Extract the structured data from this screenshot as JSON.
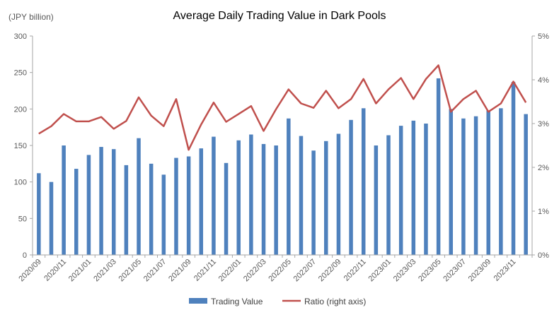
{
  "chart_data": {
    "type": "bar",
    "title": "Average Daily Trading Value in Dark Pools",
    "ylabel_left": "(JPY billion)",
    "ylim_left": [
      0,
      300
    ],
    "yticks_left": [
      "0",
      "50",
      "100",
      "150",
      "200",
      "250",
      "300"
    ],
    "ylim_right": [
      0,
      5
    ],
    "yticks_right": [
      "0%",
      "1%",
      "2%",
      "3%",
      "4%",
      "5%"
    ],
    "categories": [
      "2020/09",
      "2020/10",
      "2020/11",
      "2020/12",
      "2021/01",
      "2021/02",
      "2021/03",
      "2021/04",
      "2021/05",
      "2021/06",
      "2021/07",
      "2021/08",
      "2021/09",
      "2021/10",
      "2021/11",
      "2021/12",
      "2022/01",
      "2022/02",
      "2022/03",
      "2022/04",
      "2022/05",
      "2022/06",
      "2022/07",
      "2022/08",
      "2022/09",
      "2022/10",
      "2022/11",
      "2022/12",
      "2023/01",
      "2023/02",
      "2023/03",
      "2023/04",
      "2023/05",
      "2023/06",
      "2023/07",
      "2023/08",
      "2023/09",
      "2023/10",
      "2023/11",
      "2023/12"
    ],
    "xtick_labels": [
      "2020/09",
      "2020/11",
      "2021/01",
      "2021/03",
      "2021/05",
      "2021/07",
      "2021/09",
      "2021/11",
      "2022/01",
      "2022/03",
      "2022/05",
      "2022/07",
      "2022/09",
      "2022/11",
      "2023/01",
      "2023/03",
      "2023/05",
      "2023/07",
      "2023/09",
      "2023/11"
    ],
    "series": [
      {
        "name": "Trading Value",
        "type": "bar",
        "axis": "left",
        "color": "#4f81bd",
        "values": [
          112,
          100,
          150,
          118,
          137,
          148,
          145,
          123,
          160,
          125,
          110,
          133,
          135,
          146,
          162,
          126,
          157,
          165,
          152,
          150,
          187,
          163,
          143,
          156,
          166,
          185,
          201,
          150,
          164,
          177,
          184,
          180,
          242,
          200,
          187,
          190,
          198,
          201,
          237,
          193
        ]
      },
      {
        "name": "Ratio (right axis)",
        "type": "line",
        "axis": "right",
        "color": "#c0504d",
        "values": [
          2.77,
          2.94,
          3.22,
          3.05,
          3.05,
          3.15,
          2.88,
          3.06,
          3.6,
          3.18,
          2.94,
          3.56,
          2.4,
          2.98,
          3.48,
          3.04,
          3.22,
          3.4,
          2.83,
          3.33,
          3.78,
          3.46,
          3.36,
          3.75,
          3.35,
          3.56,
          4.02,
          3.46,
          3.78,
          4.04,
          3.56,
          4.02,
          4.33,
          3.27,
          3.56,
          3.75,
          3.27,
          3.46,
          3.96,
          3.48
        ]
      }
    ],
    "legend": {
      "position": "bottom"
    },
    "grid": false
  }
}
